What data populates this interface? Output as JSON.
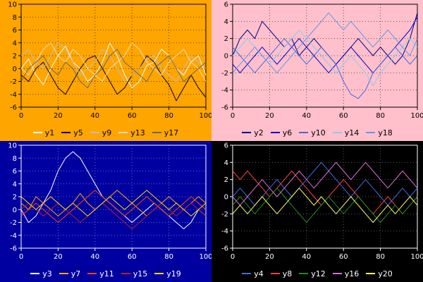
{
  "chart_data": [
    {
      "type": "line",
      "position": "top-left",
      "bg": "#FFA500",
      "fg": "#000000",
      "grid_color": "#5b4300",
      "grid": true,
      "legend_position": "bottom",
      "xlim": [
        0,
        100
      ],
      "ylim": [
        -6,
        10
      ],
      "xticks": [
        0,
        20,
        40,
        60,
        80,
        100
      ],
      "yticks": [
        -6,
        -4,
        -2,
        0,
        2,
        4,
        6,
        8,
        10
      ],
      "series": [
        {
          "name": "y1",
          "color": "#FFFFFF",
          "values": [
            0,
            1.5,
            -1,
            -2.5,
            0,
            2,
            3.5,
            1,
            0,
            -2,
            -1,
            1,
            4,
            2,
            -1,
            -3,
            -2,
            0.5,
            1,
            3,
            2,
            0,
            -1,
            1,
            2,
            -1
          ]
        },
        {
          "name": "y5",
          "color": "#000000",
          "values": [
            -1,
            -2,
            0,
            1,
            -1,
            -3,
            -4,
            -2,
            0,
            1.5,
            2,
            0,
            -2,
            -4,
            -3,
            -1,
            0,
            2,
            1,
            -1,
            -2.5,
            -5,
            -3,
            -1,
            -3,
            -4.5
          ]
        },
        {
          "name": "y9",
          "color": "#BEBEBE",
          "values": [
            2,
            3,
            1,
            0,
            2,
            4,
            3,
            1,
            -1,
            0,
            1,
            3,
            2,
            0,
            -2,
            -1,
            0,
            1.5,
            2,
            0,
            -1,
            -2,
            0,
            2,
            1,
            0
          ]
        },
        {
          "name": "y13",
          "color": "#F5DEB3",
          "values": [
            0,
            -1,
            1,
            3,
            4,
            2,
            1,
            3,
            2,
            0,
            -1,
            -2,
            0,
            1,
            2,
            4,
            3,
            1,
            0,
            -1,
            1,
            2,
            3,
            1,
            0,
            -2
          ]
        },
        {
          "name": "y17",
          "color": "#696969",
          "values": [
            -2,
            0,
            1,
            2,
            0,
            -1,
            1,
            0,
            -2,
            -3,
            -1,
            0,
            2,
            3,
            1,
            0,
            -1,
            -2,
            0,
            1,
            2,
            0,
            -2,
            -1,
            0,
            1
          ]
        }
      ]
    },
    {
      "type": "line",
      "position": "top-right",
      "bg": "#FFC0CB",
      "fg": "#000000",
      "grid_color": "#555555",
      "grid": true,
      "legend_position": "bottom",
      "xlim": [
        0,
        100
      ],
      "ylim": [
        -6,
        6
      ],
      "xticks": [
        0,
        20,
        40,
        60,
        80,
        100
      ],
      "yticks": [
        -6,
        -4,
        -2,
        0,
        2,
        4,
        6
      ],
      "series": [
        {
          "name": "y2",
          "color": "#00008B",
          "values": [
            0,
            2,
            3,
            2,
            4,
            3,
            2,
            1,
            2,
            0,
            1,
            2,
            1,
            0,
            -1,
            0,
            1,
            2,
            1,
            0,
            1,
            0,
            -1,
            0,
            2,
            5
          ]
        },
        {
          "name": "y6",
          "color": "#0000CD",
          "values": [
            -1,
            -2,
            -1,
            0,
            1,
            0,
            -1,
            0,
            1,
            2,
            1,
            0,
            -1,
            -2,
            -1,
            0,
            1,
            0,
            -1,
            -2,
            -1,
            0,
            1,
            2,
            3,
            4.5
          ]
        },
        {
          "name": "y10",
          "color": "#4169E1",
          "values": [
            1,
            0,
            -1,
            -2,
            -1,
            0,
            1,
            2,
            1,
            0,
            -1,
            0,
            1,
            0,
            -1,
            -3,
            -4.5,
            -5,
            -4,
            -2,
            -1,
            0,
            1,
            0,
            -1,
            0
          ]
        },
        {
          "name": "y14",
          "color": "#87CEEB",
          "values": [
            0,
            1,
            2,
            1,
            0,
            -1,
            0,
            1,
            2,
            3,
            2,
            1,
            0,
            -1,
            -2,
            -1,
            0,
            -1,
            -2,
            -3.5,
            -2,
            -1,
            0,
            1,
            2,
            1
          ]
        },
        {
          "name": "y18",
          "color": "#6495ED",
          "values": [
            -2,
            -1,
            0,
            1,
            0,
            -1,
            -2,
            -1,
            0,
            1,
            2,
            3,
            4,
            5,
            4,
            3,
            4,
            3,
            2,
            1,
            2,
            3,
            2,
            1,
            0,
            2
          ]
        }
      ]
    },
    {
      "type": "line",
      "position": "bottom-left",
      "bg": "#0000A0",
      "fg": "#FFFFFF",
      "grid_color": "#6666CC",
      "grid": true,
      "legend_position": "bottom",
      "xlim": [
        0,
        100
      ],
      "ylim": [
        -6,
        10
      ],
      "xticks": [
        0,
        20,
        40,
        60,
        80,
        100
      ],
      "yticks": [
        -6,
        -4,
        -2,
        0,
        2,
        4,
        6,
        8,
        10
      ],
      "series": [
        {
          "name": "y3",
          "color": "#FFFFFF",
          "values": [
            0,
            -2,
            -1,
            1,
            3,
            6,
            8,
            9,
            8,
            6,
            4,
            2,
            1,
            0,
            -1,
            -2,
            -1,
            0,
            1,
            0,
            -1,
            -2,
            -3,
            -2,
            0,
            -1
          ]
        },
        {
          "name": "y7",
          "color": "#FFA500",
          "values": [
            1,
            0,
            2,
            1,
            0,
            -1,
            0,
            1,
            2.5,
            1,
            0,
            1,
            2,
            3,
            2,
            1,
            0,
            -1,
            0,
            1,
            2,
            1,
            0,
            1,
            2,
            1
          ]
        },
        {
          "name": "y11",
          "color": "#FF4500",
          "values": [
            -1,
            0,
            1,
            0,
            -1,
            -2,
            -1,
            0,
            1,
            2,
            3,
            2,
            1,
            0,
            -1,
            0,
            1,
            2,
            1,
            0,
            -1,
            0,
            1,
            2,
            1,
            0
          ]
        },
        {
          "name": "y15",
          "color": "#B22222",
          "values": [
            0,
            1,
            0,
            -1,
            0,
            1,
            0,
            -1,
            -2,
            -1,
            0,
            1,
            0,
            -1,
            -2,
            -3,
            -2,
            -1,
            0,
            1,
            0,
            -1,
            0,
            1,
            0,
            -1
          ]
        },
        {
          "name": "y19",
          "color": "#FFD700",
          "values": [
            2,
            1,
            0,
            1,
            2,
            1,
            0,
            1,
            0,
            -1,
            0,
            1,
            2,
            1,
            0,
            1,
            2,
            3,
            2,
            1,
            0,
            1,
            0,
            -1,
            0,
            1
          ]
        }
      ]
    },
    {
      "type": "line",
      "position": "bottom-right",
      "bg": "#000000",
      "fg": "#FFFFFF",
      "grid_color": "#555555",
      "grid": true,
      "legend_position": "bottom",
      "xlim": [
        0,
        100
      ],
      "ylim": [
        -6,
        6
      ],
      "xticks": [
        0,
        20,
        40,
        60,
        80,
        100
      ],
      "yticks": [
        -6,
        -4,
        -2,
        0,
        2,
        4,
        6
      ],
      "series": [
        {
          "name": "y4",
          "color": "#4169E1",
          "values": [
            0,
            1,
            0,
            -1,
            0,
            1,
            2,
            1,
            0,
            1,
            2,
            3,
            4,
            3,
            2,
            1,
            0,
            1,
            2,
            1,
            0,
            -1,
            0,
            1,
            0,
            1
          ]
        },
        {
          "name": "y8",
          "color": "#FF4040",
          "values": [
            3,
            2,
            3,
            2,
            1,
            0,
            1,
            2,
            3,
            2,
            1,
            0,
            -1,
            0,
            1,
            2,
            1,
            0,
            -1,
            -2,
            -1,
            0,
            -1,
            -2,
            -1,
            0
          ]
        },
        {
          "name": "y12",
          "color": "#228B22",
          "values": [
            -1,
            0,
            -1,
            -2,
            -1,
            0,
            1,
            0,
            -1,
            -2,
            -3,
            -2,
            -1,
            0,
            -1,
            -2,
            -1,
            0,
            -1,
            -2,
            -3,
            -2,
            -1,
            -2,
            -1,
            0
          ]
        },
        {
          "name": "y16",
          "color": "#DA70D6",
          "values": [
            0,
            -1,
            0,
            1,
            2,
            1,
            0,
            1,
            2,
            3,
            2,
            1,
            2,
            3,
            4,
            3,
            2,
            3,
            4,
            3,
            2,
            1,
            2,
            3,
            2,
            1
          ]
        },
        {
          "name": "y20",
          "color": "#FFFF66",
          "values": [
            -2,
            -1,
            -2,
            -1,
            0,
            -1,
            -2,
            -1,
            0,
            1,
            0,
            -1,
            0,
            -1,
            -2,
            -1,
            0,
            -1,
            -2,
            -3,
            -2,
            -1,
            -2,
            -1,
            0,
            -1
          ]
        }
      ]
    }
  ]
}
